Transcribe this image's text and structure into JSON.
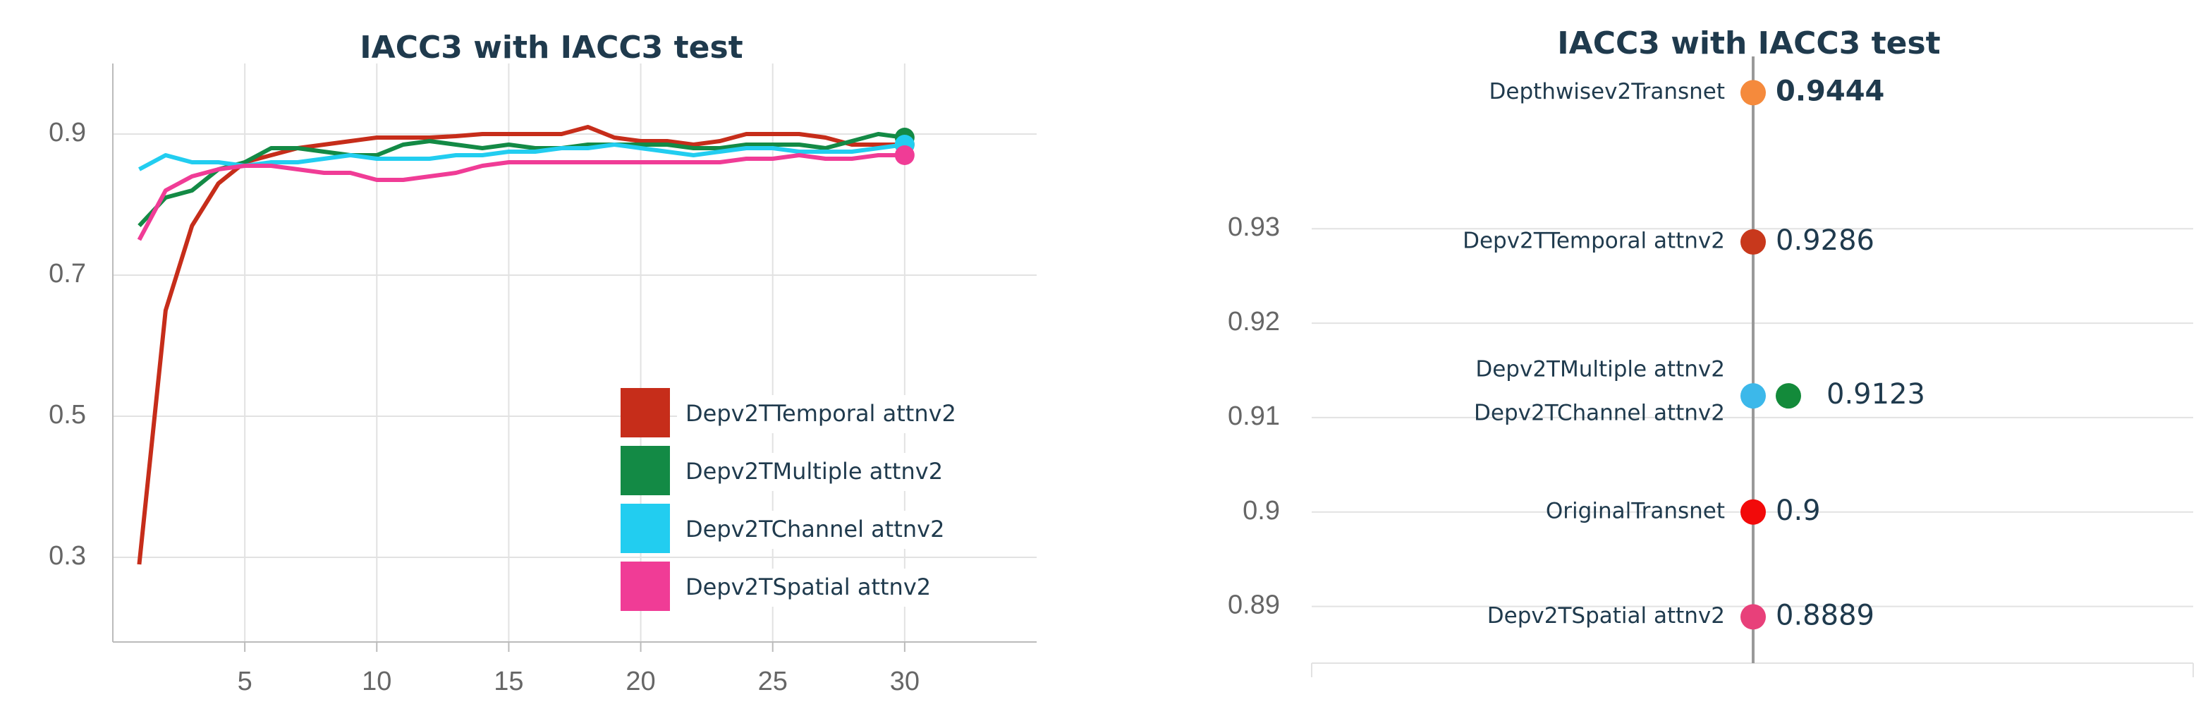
{
  "chart_data": [
    {
      "type": "line",
      "title": "IACC3 with IACC3 test",
      "x": [
        1,
        2,
        3,
        4,
        5,
        6,
        7,
        8,
        9,
        10,
        11,
        12,
        13,
        14,
        15,
        16,
        17,
        18,
        19,
        20,
        21,
        22,
        23,
        24,
        25,
        26,
        27,
        28,
        29,
        30
      ],
      "xlim": [
        0,
        35
      ],
      "xticks": [
        5,
        10,
        15,
        20,
        25,
        30
      ],
      "ylim": [
        0.18,
        1.0
      ],
      "yticks": [
        0.3,
        0.5,
        0.7,
        0.9
      ],
      "grid": true,
      "legend": "lower right",
      "series": [
        {
          "name": "Depv2TTemporal attnv2",
          "color": "#c62d1a",
          "values": [
            0.29,
            0.65,
            0.77,
            0.83,
            0.86,
            0.87,
            0.88,
            0.885,
            0.89,
            0.895,
            0.895,
            0.895,
            0.897,
            0.9,
            0.9,
            0.9,
            0.9,
            0.91,
            0.895,
            0.89,
            0.89,
            0.885,
            0.89,
            0.9,
            0.9,
            0.9,
            0.895,
            0.885,
            0.885,
            0.885
          ]
        },
        {
          "name": "Depv2TMultiple attnv2",
          "color": "#138a45",
          "values": [
            0.77,
            0.81,
            0.82,
            0.85,
            0.86,
            0.88,
            0.88,
            0.875,
            0.87,
            0.87,
            0.885,
            0.89,
            0.885,
            0.88,
            0.885,
            0.88,
            0.88,
            0.885,
            0.885,
            0.885,
            0.885,
            0.88,
            0.88,
            0.885,
            0.885,
            0.885,
            0.88,
            0.89,
            0.9,
            0.895
          ]
        },
        {
          "name": "Depv2TChannel attnv2",
          "color": "#22cdf0",
          "values": [
            0.85,
            0.87,
            0.86,
            0.86,
            0.855,
            0.86,
            0.86,
            0.865,
            0.87,
            0.865,
            0.865,
            0.865,
            0.87,
            0.87,
            0.875,
            0.875,
            0.88,
            0.88,
            0.885,
            0.88,
            0.875,
            0.87,
            0.875,
            0.88,
            0.88,
            0.875,
            0.875,
            0.875,
            0.88,
            0.885
          ]
        },
        {
          "name": "Depv2TSpatial attnv2",
          "color": "#f03c96",
          "values": [
            0.75,
            0.82,
            0.84,
            0.85,
            0.855,
            0.855,
            0.85,
            0.845,
            0.845,
            0.835,
            0.835,
            0.84,
            0.845,
            0.855,
            0.86,
            0.86,
            0.86,
            0.86,
            0.86,
            0.86,
            0.86,
            0.86,
            0.86,
            0.865,
            0.865,
            0.87,
            0.865,
            0.865,
            0.87,
            0.87
          ]
        }
      ]
    },
    {
      "type": "dot",
      "title": "IACC3 with IACC3 test",
      "ylim": [
        0.884,
        0.946
      ],
      "yticks": [
        0.89,
        0.9,
        0.91,
        0.92,
        0.93
      ],
      "grid": true,
      "categories": [
        "Depthwisev2Transnet",
        "Depv2TTemporal attnv2",
        "Depv2TMultiple attnv2",
        "Depv2TChannel attnv2",
        "OriginalTransnet",
        "Depv2TSpatial attnv2"
      ],
      "values": [
        0.9444,
        0.9286,
        0.9123,
        0.9123,
        0.9,
        0.8889
      ],
      "value_labels": [
        "0.9444",
        "0.9286",
        "0.9123",
        null,
        "0.9",
        "0.8889"
      ],
      "colors": [
        "#f58a3c",
        "#c8381c",
        "#138a3a",
        "#3cb8ea",
        "#f20a0a",
        "#e8407a"
      ]
    }
  ]
}
